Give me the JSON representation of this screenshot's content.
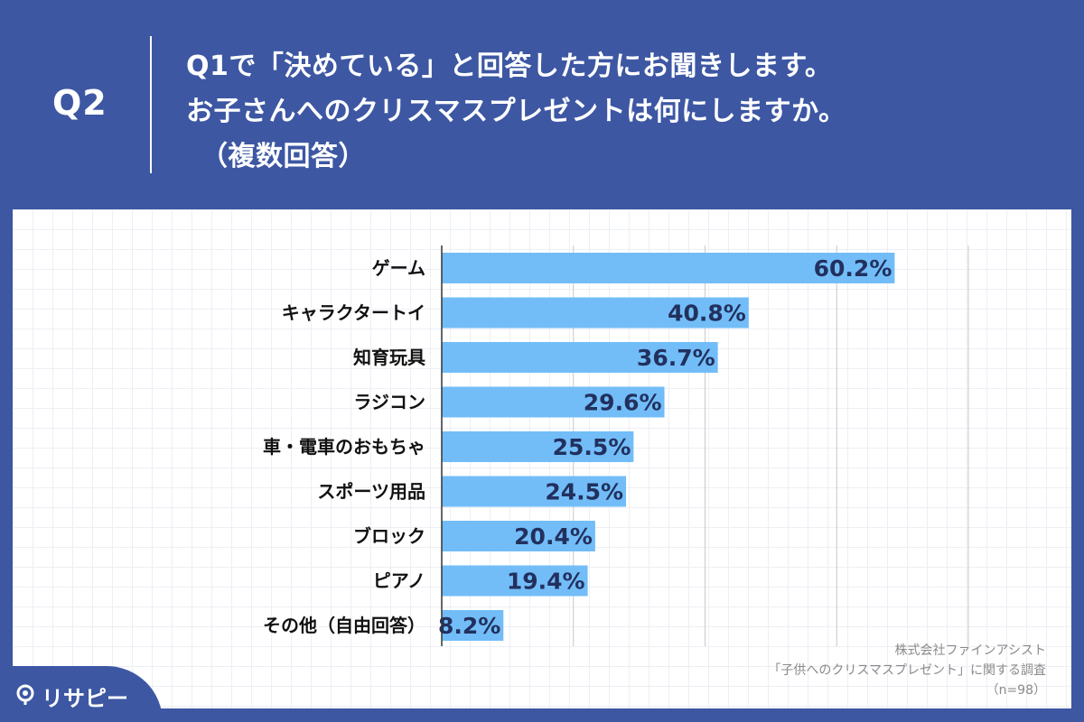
{
  "header": {
    "q_label": "Q2",
    "lines": [
      "Q1で「決めている」と回答した方にお聞きします。",
      "お子さんへのクリスマスプレゼントは何にしますか。",
      "（複数回答）"
    ]
  },
  "chart_data": {
    "type": "bar",
    "orientation": "horizontal",
    "categories": [
      "ゲーム",
      "キャラクタートイ",
      "知育玩具",
      "ラジコン",
      "車・電車のおもちゃ",
      "スポーツ用品",
      "ブロック",
      "ピアノ",
      "その他（自由回答）"
    ],
    "values": [
      60.2,
      40.8,
      36.7,
      29.6,
      25.5,
      24.5,
      20.4,
      19.4,
      8.2
    ],
    "value_labels": [
      "60.2%",
      "40.8%",
      "36.7%",
      "29.6%",
      "25.5%",
      "24.5%",
      "20.4%",
      "19.4%",
      "8.2%"
    ],
    "unit": "%",
    "xlim": [
      0,
      70
    ],
    "x_gridlines": [
      17.5,
      35,
      52.5,
      70
    ],
    "grid": true,
    "colors": {
      "bar": "#72bdf8",
      "label": "#22305e",
      "gridline": "#c8c8c8",
      "axis": "#333333"
    }
  },
  "source": {
    "lines": [
      "株式会社ファインアシスト",
      "「子供へのクリスマスプレゼント」に関する調査",
      "（n=98）"
    ]
  },
  "logo": {
    "text": "リサピー",
    "icon": "pin-icon"
  },
  "colors": {
    "background": "#3d57a3",
    "panel": "#ffffff"
  }
}
